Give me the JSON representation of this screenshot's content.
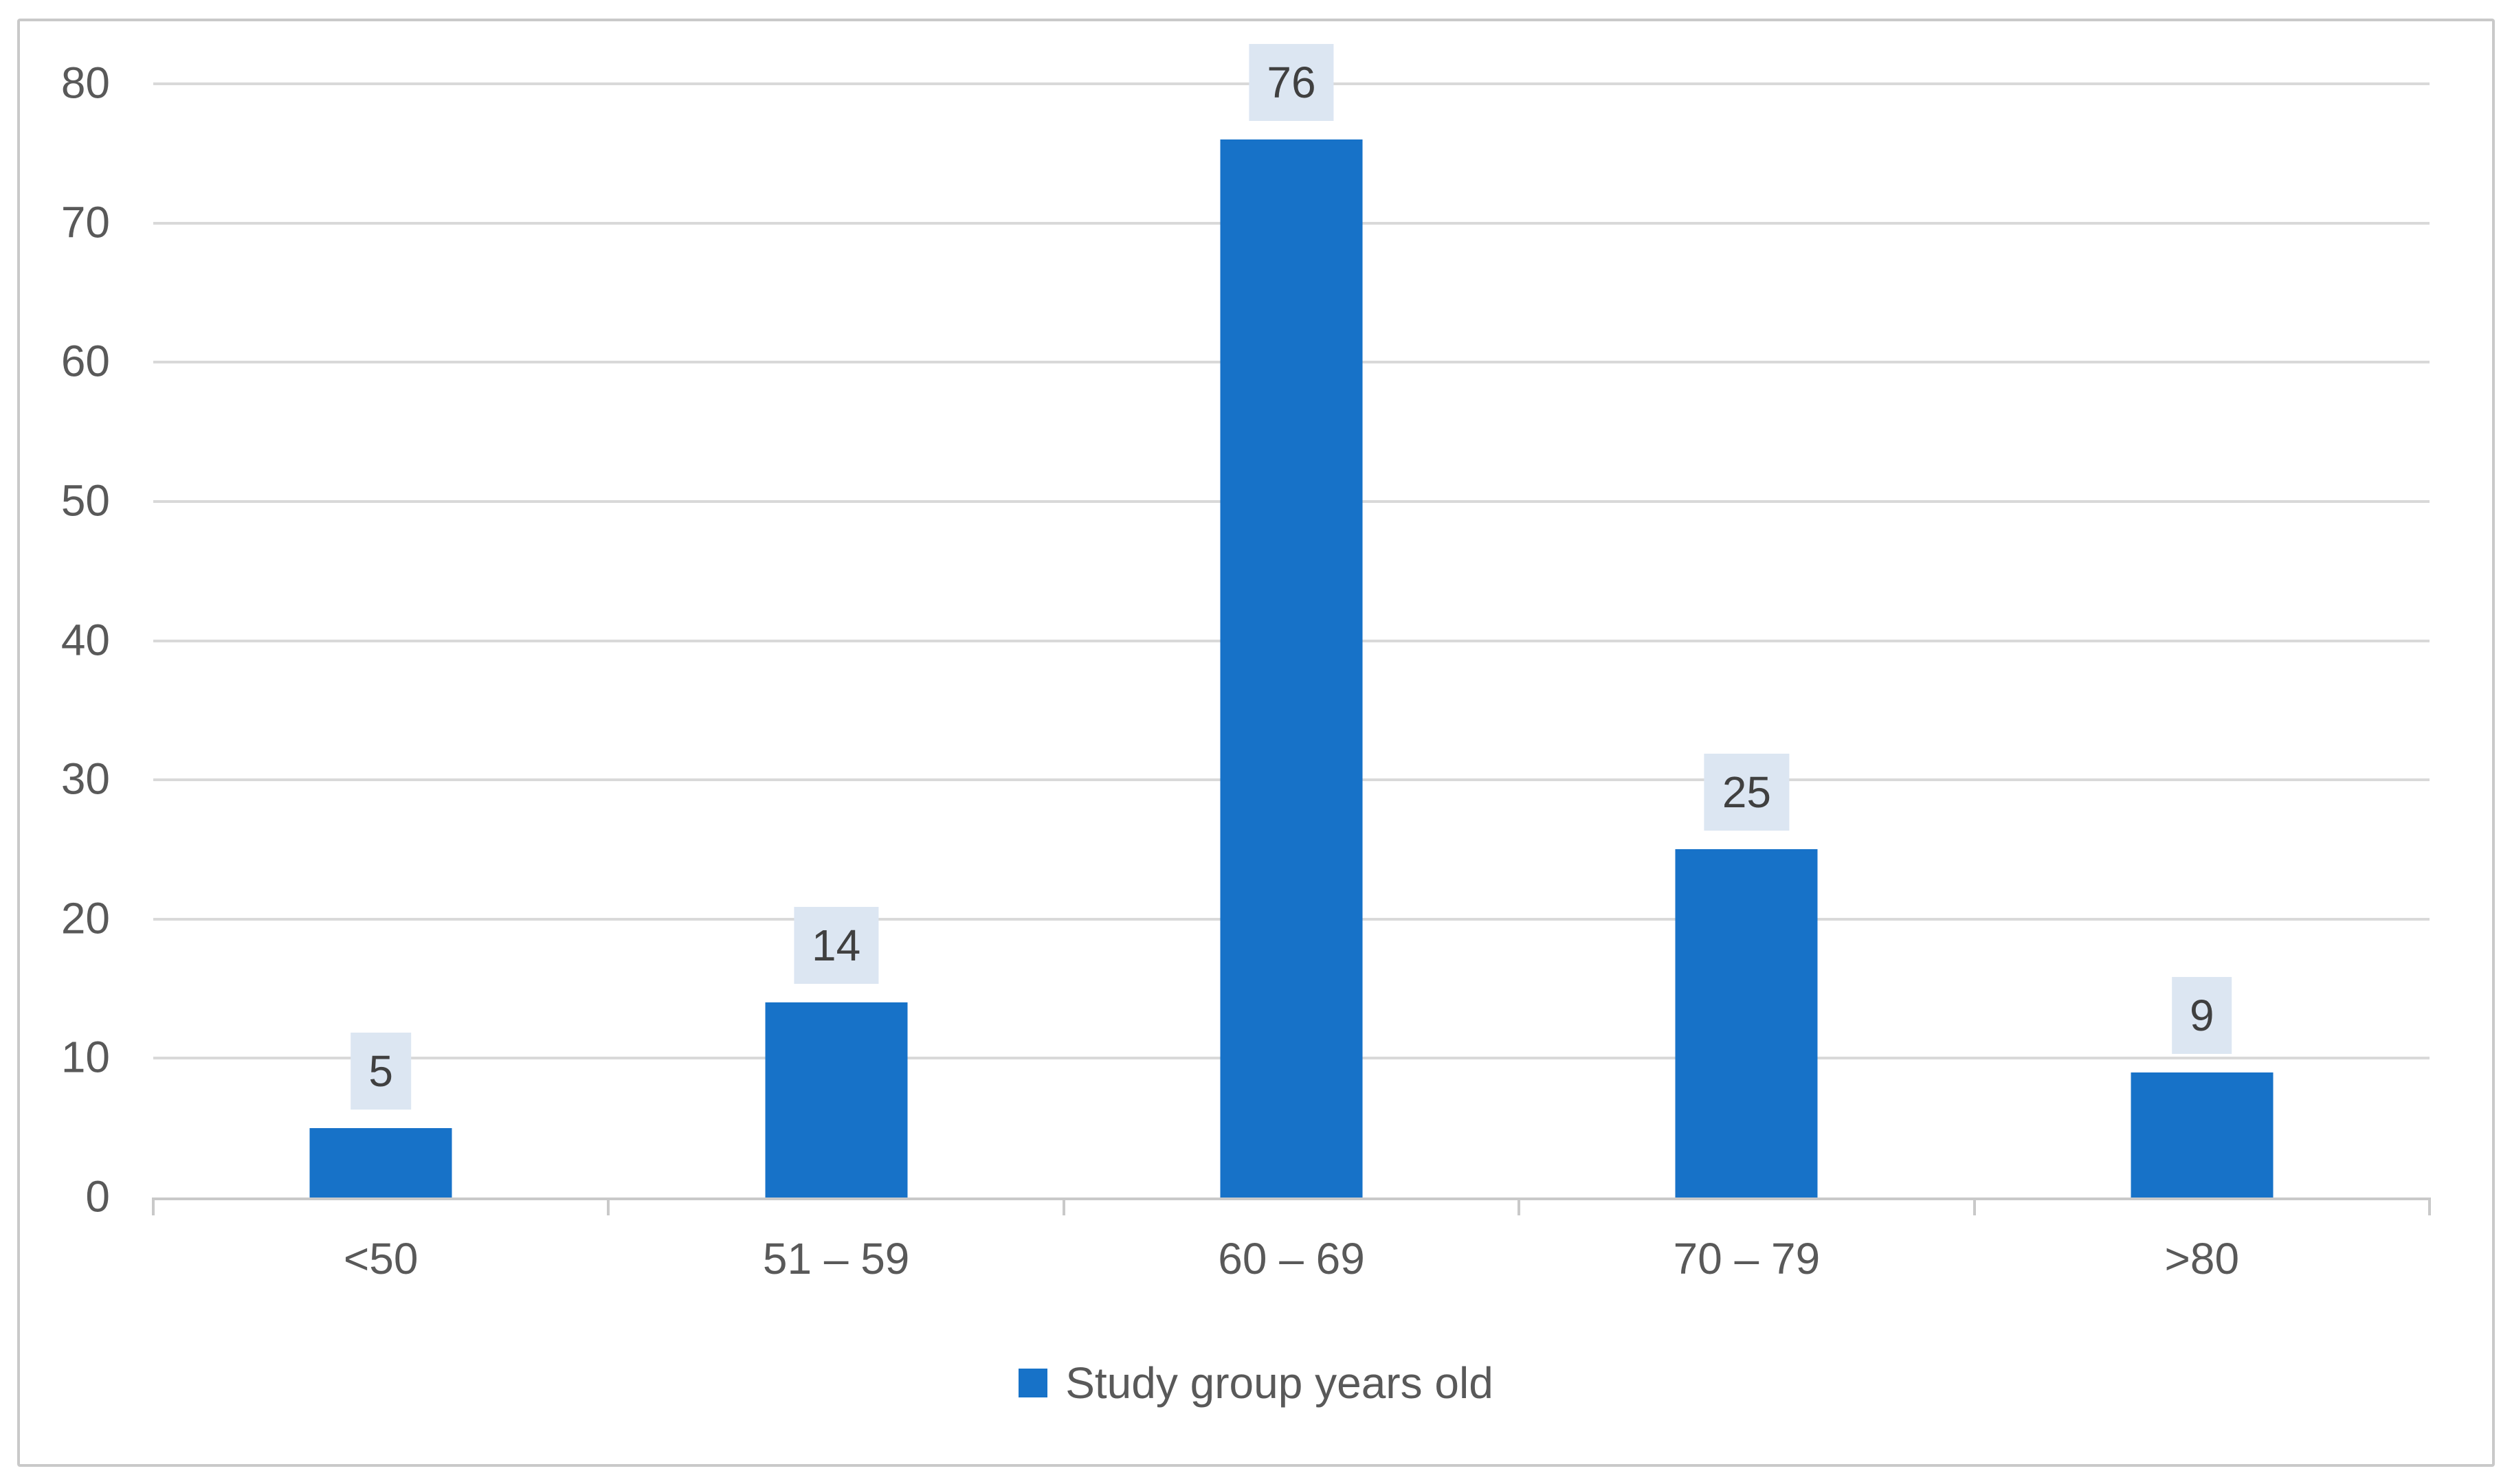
{
  "chart_data": {
    "type": "bar",
    "title": "",
    "xlabel": "",
    "ylabel": "",
    "categories": [
      "<50",
      "51 – 59",
      "60 – 69",
      "70 – 79",
      ">80"
    ],
    "series": [
      {
        "name": "Study group years old",
        "values": [
          5,
          14,
          76,
          25,
          9
        ],
        "color": "#1772C8"
      }
    ],
    "data_labels": true,
    "ylim": [
      0,
      80
    ],
    "yticks": [
      0,
      10,
      20,
      30,
      40,
      50,
      60,
      70,
      80
    ],
    "grid": true,
    "legend_position": "bottom-center",
    "colors": {
      "bar": "#1772C8",
      "data_label_background": "#DCE6F2",
      "data_label_text": "#404040",
      "axis_text": "#595959",
      "gridline": "#D9D9D9",
      "axis_line": "#C9C9C9",
      "chart_border": "#C9C9C9",
      "background": "#FFFFFF"
    }
  }
}
